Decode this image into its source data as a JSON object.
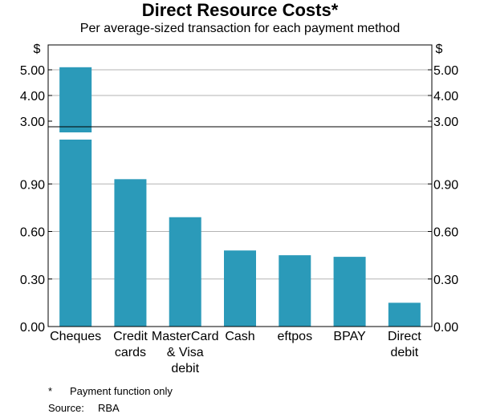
{
  "title": "Direct Resource Costs*",
  "subtitle": "Per average-sized transaction for each payment method",
  "unit_label": "$",
  "footnote_mark": "*",
  "footnote_text": "Payment function only",
  "source_label": "Source:",
  "source_text": "RBA",
  "chart_data": {
    "type": "bar",
    "categories": [
      "Cheques",
      "Credit cards",
      "MasterCard & Visa debit",
      "Cash",
      "eftpos",
      "BPAY",
      "Direct debit"
    ],
    "category_lines": [
      [
        "Cheques"
      ],
      [
        "Credit",
        "cards"
      ],
      [
        "MasterCard",
        "& Visa",
        "debit"
      ],
      [
        "Cash"
      ],
      [
        "eftpos"
      ],
      [
        "BPAY"
      ],
      [
        "Direct",
        "debit"
      ]
    ],
    "values": [
      5.1,
      0.93,
      0.69,
      0.48,
      0.45,
      0.44,
      0.15
    ],
    "bar_color": "#2b9ab9",
    "y_axis_broken": true,
    "upper_panel": {
      "ylim": [
        3.0,
        5.5
      ],
      "ticks": [
        3.0,
        4.0,
        5.0
      ],
      "tick_labels": [
        "3.00",
        "4.00",
        "5.00"
      ]
    },
    "lower_panel": {
      "ylim": [
        0,
        1.2
      ],
      "ticks": [
        0,
        0.3,
        0.6,
        0.9
      ],
      "tick_labels": [
        "0.00",
        "0.30",
        "0.60",
        "0.90"
      ]
    },
    "grid": true
  }
}
